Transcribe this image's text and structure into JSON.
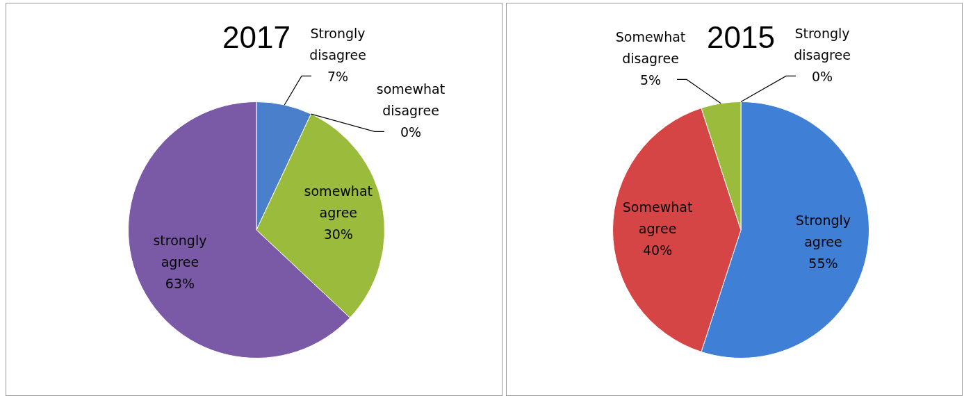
{
  "chart_data": [
    {
      "type": "pie",
      "title": "2017",
      "categories": [
        "Strongly disagree",
        "somewhat disagree",
        "somewhat agree",
        "strongly agree"
      ],
      "values": [
        7,
        0,
        30,
        63
      ],
      "value_labels": [
        "7%",
        "0%",
        "30%",
        "63%"
      ],
      "colors": [
        "#4a7fcc",
        "#c0504d",
        "#9bbb3c",
        "#7a5aa6"
      ],
      "legend": false
    },
    {
      "type": "pie",
      "title": "2015",
      "categories": [
        "Strongly agree",
        "Somewhat agree",
        "Somewhat disagree",
        "Strongly disagree"
      ],
      "values": [
        55,
        40,
        5,
        0
      ],
      "value_labels": [
        "55%",
        "40%",
        "5%",
        "0%"
      ],
      "colors": [
        "#3f7fd6",
        "#d64545",
        "#9bbb3c",
        "#8064a2"
      ],
      "legend": false
    }
  ]
}
